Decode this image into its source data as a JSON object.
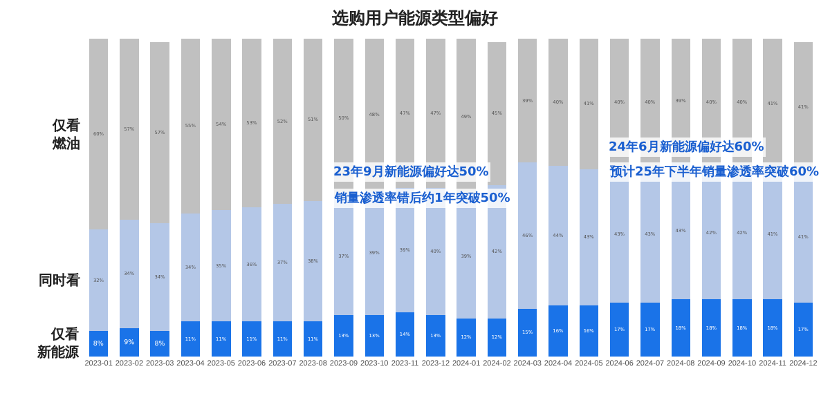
{
  "chart_data": {
    "type": "bar",
    "title": "选购用户能源类型偏好",
    "stacked": true,
    "legend": false,
    "categories": [
      "2023-01",
      "2023-02",
      "2023-03",
      "2023-04",
      "2023-05",
      "2023-06",
      "2023-07",
      "2023-08",
      "2023-09",
      "2023-10",
      "2023-11",
      "2023-12",
      "2024-01",
      "2024-02",
      "2024-03",
      "2024-04",
      "2024-05",
      "2024-06",
      "2024-07",
      "2024-08",
      "2024-09",
      "2024-10",
      "2024-11",
      "2024-12"
    ],
    "series": [
      {
        "name": "仅看新能源",
        "color": "#1a73e8",
        "values": [
          8,
          9,
          8,
          11,
          11,
          11,
          11,
          11,
          13,
          13,
          14,
          13,
          12,
          12,
          15,
          16,
          16,
          17,
          17,
          18,
          18,
          18,
          18,
          17
        ],
        "value_labels": [
          "8%",
          "9%",
          "8%",
          "11%",
          "11%",
          "11%",
          "11%",
          "11%",
          "13%",
          "13%",
          "14%",
          "13%",
          "12%",
          "12%",
          "15%",
          "16%",
          "16%",
          "17%",
          "17%",
          "18%",
          "18%",
          "18%",
          "18%",
          "17%"
        ]
      },
      {
        "name": "同时看",
        "color": "#b4c7e7",
        "values": [
          32,
          34,
          34,
          34,
          35,
          36,
          37,
          38,
          37,
          39,
          39,
          40,
          39,
          42,
          46,
          44,
          43,
          43,
          43,
          43,
          42,
          42,
          41,
          41
        ],
        "value_labels": [
          "32%",
          "34%",
          "34%",
          "34%",
          "35%",
          "36%",
          "37%",
          "38%",
          "37%",
          "39%",
          "39%",
          "40%",
          "39%",
          "42%",
          "46%",
          "44%",
          "43%",
          "43%",
          "43%",
          "43%",
          "42%",
          "42%",
          "41%",
          "41%"
        ]
      },
      {
        "name": "仅看燃油",
        "color": "#c0c0c0",
        "values": [
          60,
          57,
          57,
          55,
          54,
          53,
          52,
          51,
          50,
          48,
          47,
          47,
          49,
          45,
          39,
          40,
          41,
          40,
          40,
          39,
          40,
          40,
          41,
          41
        ],
        "value_labels": [
          "60%",
          "57%",
          "57%",
          "55%",
          "54%",
          "53%",
          "52%",
          "51%",
          "50%",
          "48%",
          "47%",
          "47%",
          "49%",
          "45%",
          "39%",
          "40%",
          "41%",
          "40%",
          "40%",
          "39%",
          "40%",
          "40%",
          "41%",
          "41%"
        ]
      }
    ],
    "annotations": [
      "23年9月新能源偏好达50%",
      "销量渗透率错后约1年突破50%",
      "24年6月新能源偏好达60%",
      "预计25年下半年销量渗透率突破60%"
    ]
  }
}
